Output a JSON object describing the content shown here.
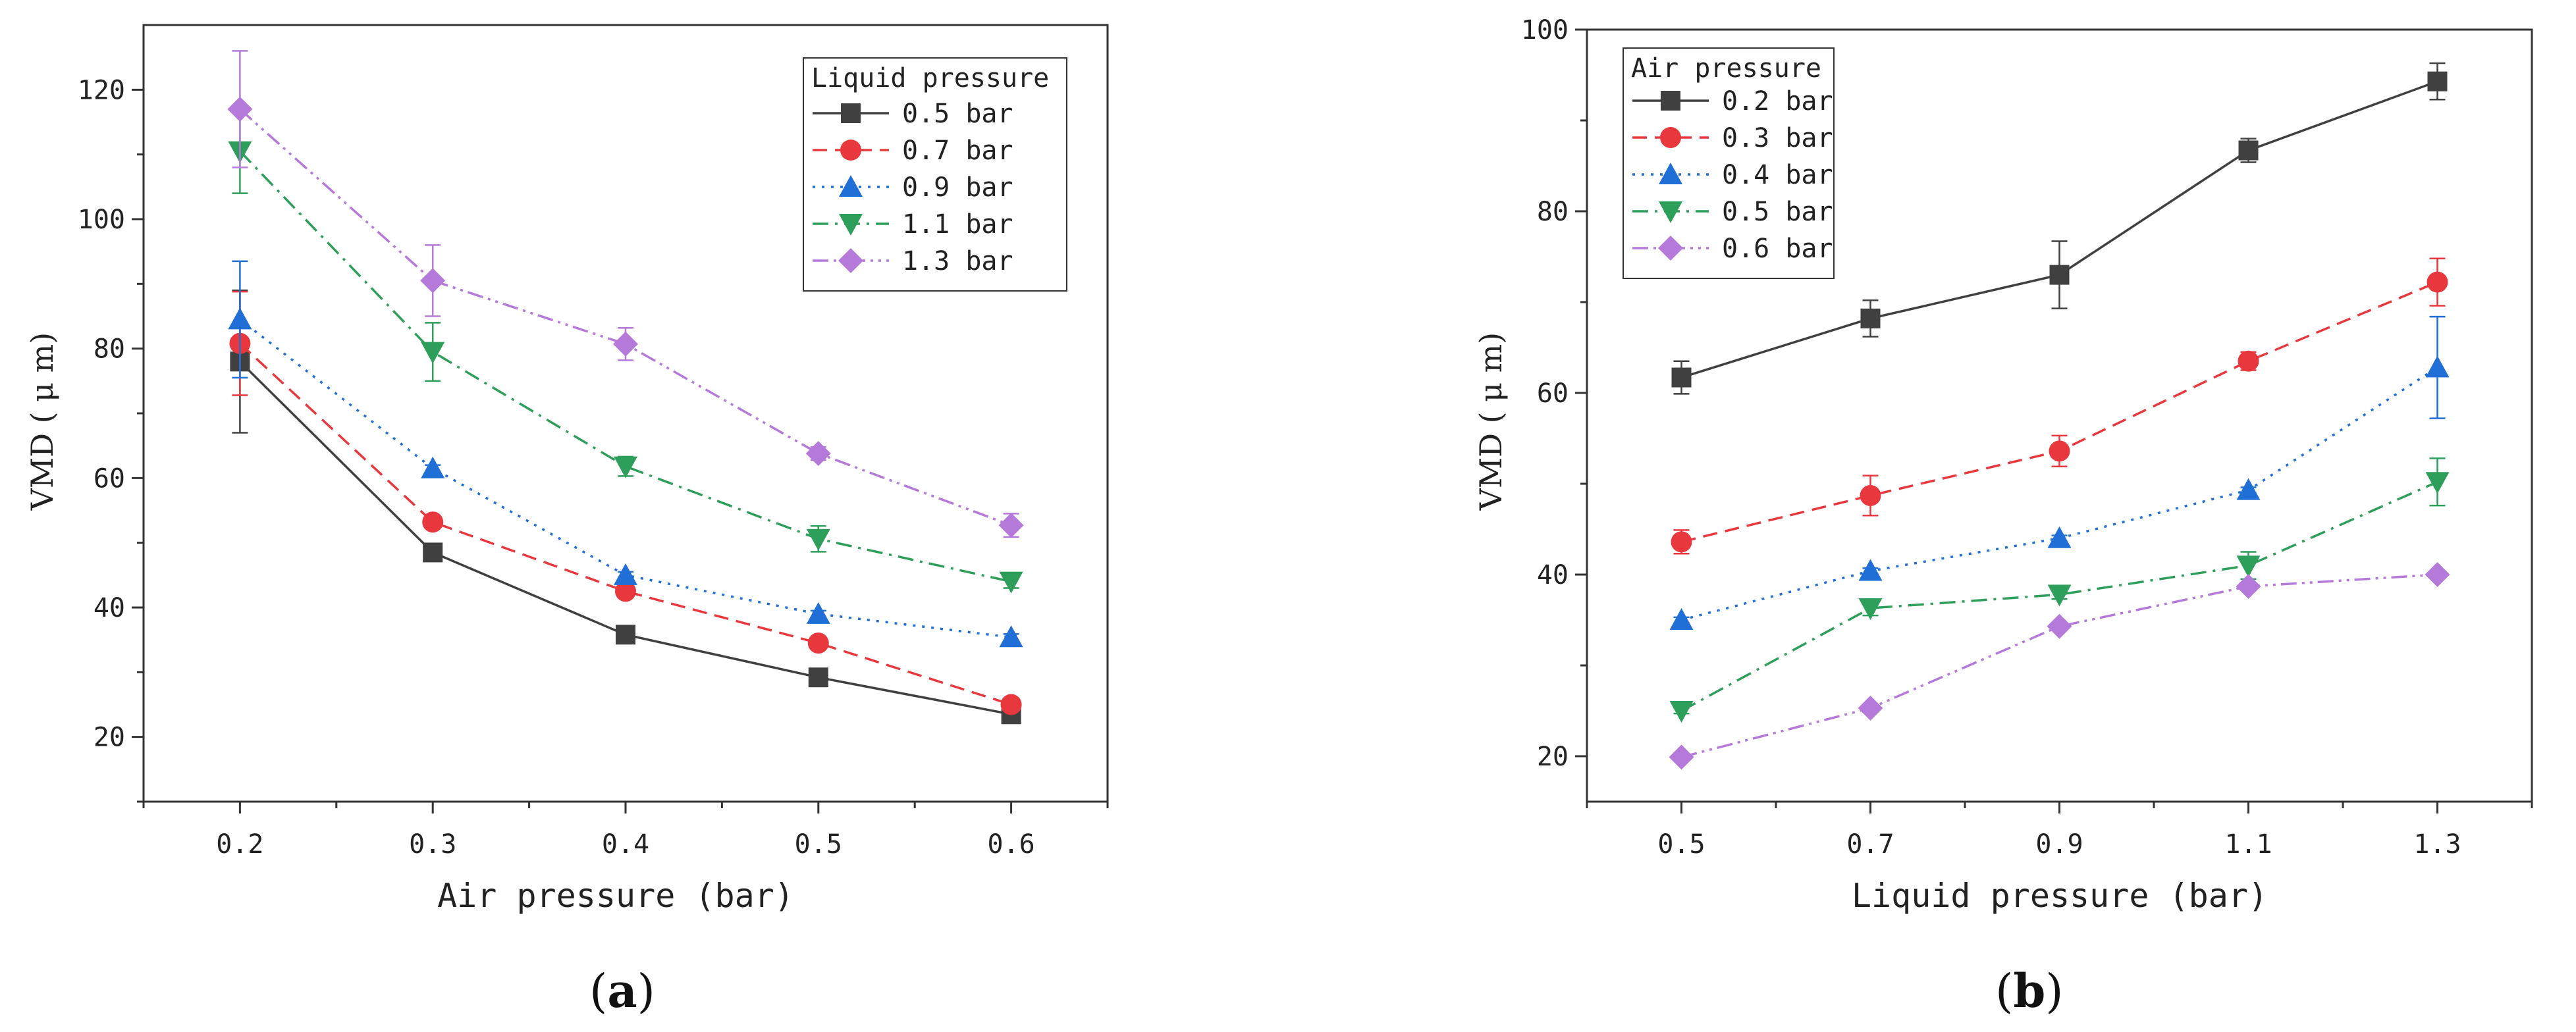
{
  "chart_data": [
    {
      "type": "line",
      "panel_label": "a",
      "title": "",
      "xlabel": "Air pressure (bar)",
      "ylabel": "VMD ( μ m)",
      "categories": [
        "0.2",
        "0.3",
        "0.4",
        "0.5",
        "0.6"
      ],
      "x": [
        0.2,
        0.3,
        0.4,
        0.5,
        0.6
      ],
      "xlim": [
        0.15,
        0.65
      ],
      "ylim": [
        10,
        130
      ],
      "yticks": [
        20,
        40,
        60,
        80,
        100,
        120
      ],
      "legend_title": "Liquid pressure",
      "legend_position": "top-right",
      "series": [
        {
          "name": "0.5 bar",
          "color": "#404040",
          "dash": "solid",
          "marker": "square",
          "values": [
            78,
            48.5,
            35.8,
            29.2,
            23.5
          ],
          "errors": [
            11,
            0.5,
            0.5,
            0.5,
            0.6
          ]
        },
        {
          "name": "0.7 bar",
          "color": "#e8383d",
          "dash": "dashed",
          "marker": "circle",
          "values": [
            80.8,
            53.2,
            42.5,
            34.5,
            25
          ],
          "errors": [
            8,
            0.5,
            0.5,
            0.6,
            0.5
          ]
        },
        {
          "name": "0.9 bar",
          "color": "#1f6fd6",
          "dash": "dotted",
          "marker": "triangle-up",
          "values": [
            84.5,
            61.5,
            45,
            39,
            35.4
          ],
          "errors": [
            9,
            0.5,
            0.5,
            0.5,
            0.5
          ]
        },
        {
          "name": "1.1 bar",
          "color": "#2e9e5b",
          "dash": "dashdot",
          "marker": "triangle-down",
          "values": [
            110.5,
            79.5,
            61.8,
            50.6,
            44
          ],
          "errors": [
            6.5,
            4.5,
            1.5,
            2,
            1
          ]
        },
        {
          "name": "1.3 bar",
          "color": "#b57ad9",
          "dash": "dashdotdot",
          "marker": "diamond",
          "values": [
            117,
            90.5,
            80.7,
            63.8,
            52.7
          ],
          "errors": [
            9,
            5.5,
            2.5,
            1,
            1.8
          ]
        }
      ]
    },
    {
      "type": "line",
      "panel_label": "b",
      "title": "",
      "xlabel": "Liquid pressure (bar)",
      "ylabel": "VMD ( μ m)",
      "categories": [
        "0.5",
        "0.7",
        "0.9",
        "1.1",
        "1.3"
      ],
      "x": [
        0.5,
        0.7,
        0.9,
        1.1,
        1.3
      ],
      "xlim": [
        0.4,
        1.4
      ],
      "ylim": [
        15,
        100
      ],
      "yticks": [
        20,
        40,
        60,
        80,
        100
      ],
      "legend_title": "Air pressure",
      "legend_position": "top-left",
      "series": [
        {
          "name": "0.2 bar",
          "color": "#404040",
          "dash": "solid",
          "marker": "square",
          "values": [
            61.7,
            68.2,
            73,
            86.7,
            94.3
          ],
          "errors": [
            1.8,
            2,
            3.7,
            1.3,
            2
          ]
        },
        {
          "name": "0.3 bar",
          "color": "#e8383d",
          "dash": "dashed",
          "marker": "circle",
          "values": [
            43.6,
            48.7,
            53.6,
            63.5,
            72.2
          ],
          "errors": [
            1.3,
            2.2,
            1.7,
            1,
            2.6
          ]
        },
        {
          "name": "0.4 bar",
          "color": "#1f6fd6",
          "dash": "dotted",
          "marker": "triangle-up",
          "values": [
            35,
            40.4,
            44,
            49.3,
            62.8
          ],
          "errors": [
            0.3,
            0.3,
            0.3,
            0.3,
            5.6
          ]
        },
        {
          "name": "0.5 bar",
          "color": "#2e9e5b",
          "dash": "dashdot",
          "marker": "triangle-down",
          "values": [
            25,
            36.3,
            37.8,
            41,
            50.2
          ],
          "errors": [
            0.3,
            0.8,
            0.5,
            1.5,
            2.6
          ]
        },
        {
          "name": "0.6 bar",
          "color": "#b57ad9",
          "dash": "dashdotdot",
          "marker": "diamond",
          "values": [
            19.9,
            25.3,
            34.3,
            38.7,
            40
          ],
          "errors": [
            0.3,
            0.3,
            0.3,
            0.3,
            0.3
          ]
        }
      ]
    }
  ]
}
